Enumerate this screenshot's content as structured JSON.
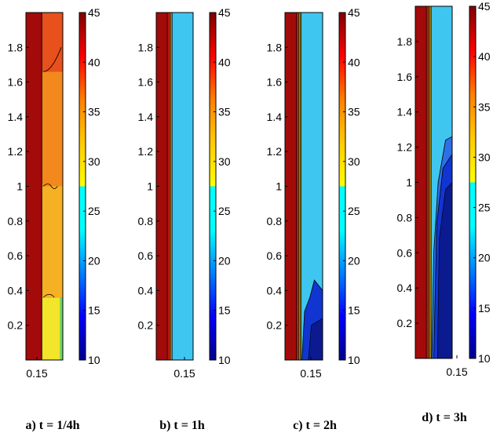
{
  "chart_data": [
    {
      "type": "heatmap",
      "caption": "a) t = 1/4h",
      "xticks": [
        0.15
      ],
      "yticks": [
        0.2,
        0.4,
        0.6,
        0.8,
        1,
        1.2,
        1.4,
        1.6,
        1.8
      ],
      "ylim": [
        0,
        2
      ],
      "colorbar": {
        "range": [
          10,
          45
        ],
        "ticks": [
          10,
          15,
          20,
          25,
          30,
          35,
          40,
          45
        ]
      },
      "bands": [
        {
          "x_frac": [
            0.0,
            0.43
          ],
          "value": 44
        },
        {
          "x_frac": [
            0.43,
            1.0
          ],
          "value": 37,
          "note": "upper region red-orange, mid orange, lower yellow"
        }
      ]
    },
    {
      "type": "heatmap",
      "caption": "b) t = 1h",
      "xticks": [
        0.15
      ],
      "yticks": [
        0.2,
        0.4,
        0.6,
        0.8,
        1,
        1.2,
        1.4,
        1.6,
        1.8
      ],
      "ylim": [
        0,
        2
      ],
      "colorbar": {
        "range": [
          10,
          45
        ],
        "ticks": [
          10,
          15,
          20,
          25,
          30,
          35,
          40,
          45
        ]
      },
      "bands": [
        {
          "x_frac": [
            0.0,
            0.3
          ],
          "value": 44
        },
        {
          "x_frac": [
            0.3,
            0.36
          ],
          "value": 38
        },
        {
          "x_frac": [
            0.36,
            0.43
          ],
          "value": 31
        },
        {
          "x_frac": [
            0.43,
            1.0
          ],
          "value": 27
        }
      ]
    },
    {
      "type": "heatmap",
      "caption": "c) t = 2h",
      "xticks": [
        0.15
      ],
      "yticks": [
        0.2,
        0.4,
        0.6,
        0.8,
        1,
        1.2,
        1.4,
        1.6,
        1.8
      ],
      "ylim": [
        0,
        2
      ],
      "colorbar": {
        "range": [
          10,
          45
        ],
        "ticks": [
          10,
          15,
          20,
          25,
          30,
          35,
          40,
          45
        ]
      },
      "bands": [
        {
          "x_frac": [
            0.0,
            0.3
          ],
          "value": 44
        },
        {
          "x_frac": [
            0.3,
            0.36
          ],
          "value": 38
        },
        {
          "x_frac": [
            0.36,
            0.43
          ],
          "value": 31
        },
        {
          "x_frac": [
            0.43,
            1.0
          ],
          "value": 26,
          "note": "cold region value ~12 near bottom right"
        }
      ]
    },
    {
      "type": "heatmap",
      "caption": "d) t = 3h",
      "xticks": [
        0.15
      ],
      "yticks": [
        0.2,
        0.4,
        0.6,
        0.8,
        1,
        1.2,
        1.4,
        1.6,
        1.8
      ],
      "ylim": [
        0,
        2
      ],
      "colorbar": {
        "range": [
          10,
          45
        ],
        "ticks": [
          10,
          15,
          20,
          25,
          30,
          35,
          40,
          45
        ]
      },
      "bands": [
        {
          "x_frac": [
            0.0,
            0.3
          ],
          "value": 44
        },
        {
          "x_frac": [
            0.3,
            0.36
          ],
          "value": 38
        },
        {
          "x_frac": [
            0.36,
            0.43
          ],
          "value": 31
        },
        {
          "x_frac": [
            0.43,
            1.0
          ],
          "value": 26,
          "note": "cold region value ~10 covering lower half on right"
        }
      ]
    }
  ],
  "colors": {
    "dark_red": "#a30b0b",
    "red": "#d11a0e",
    "orange": "#f3881c",
    "yellow": "#f2e52a",
    "cyan": "#3fc6f0",
    "blue": "#1035d0",
    "navy": "#0b1a8f"
  }
}
